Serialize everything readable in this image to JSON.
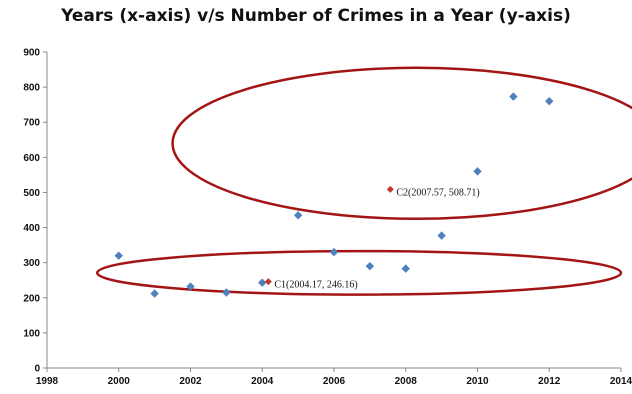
{
  "chart_data": {
    "type": "scatter",
    "title": "Years (x-axis) v/s Number of Crimes in a Year (y-axis)",
    "xlabel": "",
    "ylabel": "",
    "xlim": [
      1998,
      2014
    ],
    "ylim": [
      0,
      900
    ],
    "x_ticks": [
      1998,
      2000,
      2002,
      2004,
      2006,
      2008,
      2010,
      2012,
      2014
    ],
    "y_ticks": [
      0,
      100,
      200,
      300,
      400,
      500,
      600,
      700,
      800,
      900
    ],
    "grid": false,
    "colors": {
      "points": "#4f81bd",
      "centroids": "#c0392b",
      "clusters": "#a31515"
    },
    "series": [
      {
        "x": [
          2000,
          2001,
          2002,
          2003,
          2004,
          2005,
          2006,
          2007,
          2008,
          2009,
          2010,
          2011,
          2012
        ],
        "y": [
          320,
          212,
          232,
          215,
          243,
          435,
          330,
          290,
          283,
          377,
          560,
          773,
          760
        ]
      }
    ],
    "centroids": [
      {
        "label": "C1(2004.17, 246.16)",
        "x": 2004.17,
        "y": 246.16
      },
      {
        "label": "C2(2007.57, 508.71)",
        "x": 2007.57,
        "y": 508.71
      }
    ],
    "cluster_ellipses": [
      {
        "cx": 2006.7,
        "cy": 271,
        "rx": 7.3,
        "ry": 62
      },
      {
        "cx": 2008.3,
        "cy": 640,
        "rx": 6.8,
        "ry": 215
      }
    ]
  }
}
